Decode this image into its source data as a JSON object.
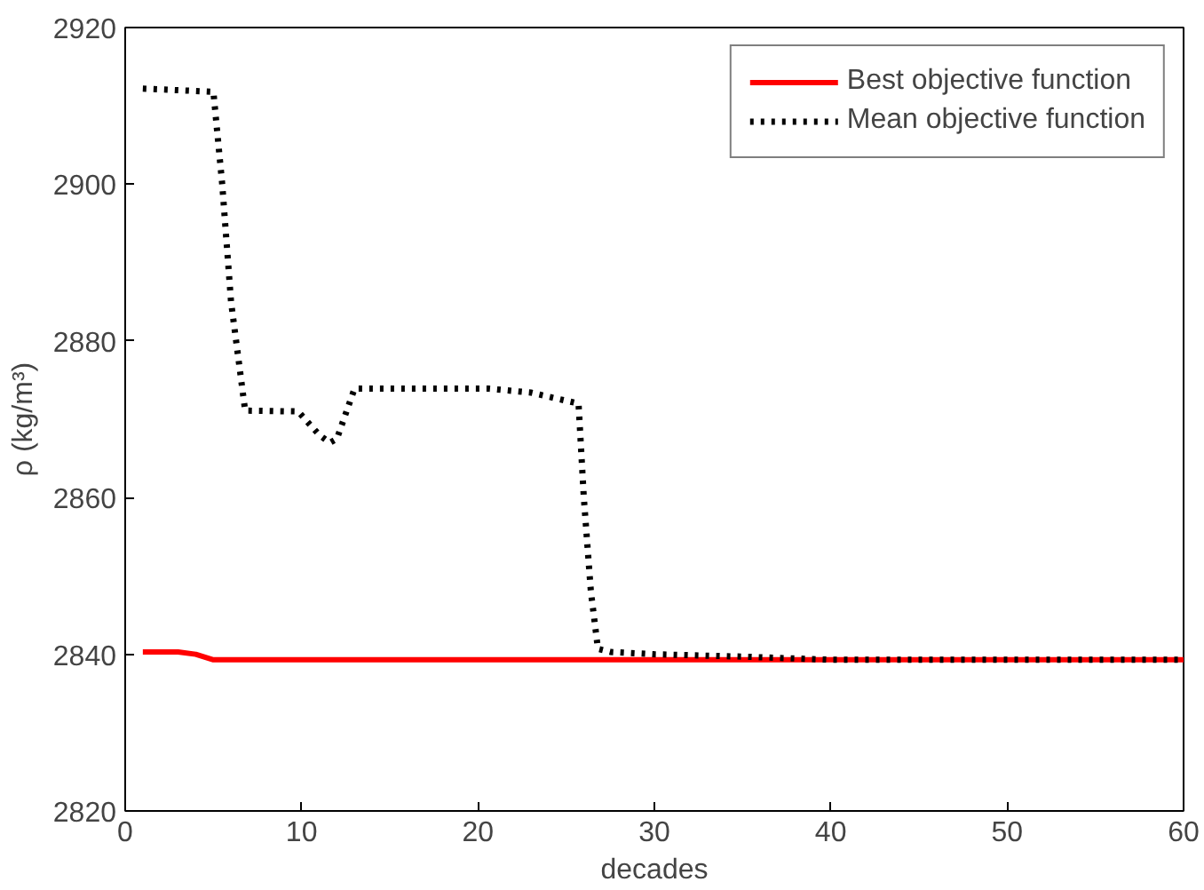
{
  "chart_data": {
    "type": "line",
    "xlabel": "decades",
    "ylabel": "ρ (kg/m³)",
    "xlim": [
      0,
      60
    ],
    "ylim": [
      2820,
      2920
    ],
    "xticks": [
      0,
      10,
      20,
      30,
      40,
      50,
      60
    ],
    "yticks": [
      2820,
      2840,
      2860,
      2880,
      2900,
      2920
    ],
    "grid": false,
    "legend": "top right",
    "series": [
      {
        "name": "Best objective function",
        "color": "#ff0000",
        "line_style": "solid",
        "x": [
          1,
          2,
          3,
          4,
          5,
          10,
          20,
          30,
          40,
          50,
          60
        ],
        "values": [
          2840.3,
          2840.3,
          2840.3,
          2840.0,
          2839.3,
          2839.3,
          2839.3,
          2839.3,
          2839.3,
          2839.3,
          2839.3
        ]
      },
      {
        "name": "Mean objective function",
        "color": "#000000",
        "line_style": "dotted",
        "x": [
          1,
          3,
          5,
          5.5,
          6,
          6.8,
          9.8,
          11,
          11.6,
          12,
          13,
          20.6,
          23,
          25.7,
          26,
          26.4,
          26.8,
          27.5,
          30,
          35,
          40,
          50,
          60
        ],
        "values": [
          2912.2,
          2912,
          2911.8,
          2900,
          2885,
          2871.1,
          2871,
          2868,
          2867,
          2867.5,
          2873.9,
          2873.9,
          2873.4,
          2872,
          2860,
          2848,
          2840.7,
          2840.3,
          2840,
          2839.7,
          2839.3,
          2839.3,
          2839.3
        ]
      }
    ]
  }
}
